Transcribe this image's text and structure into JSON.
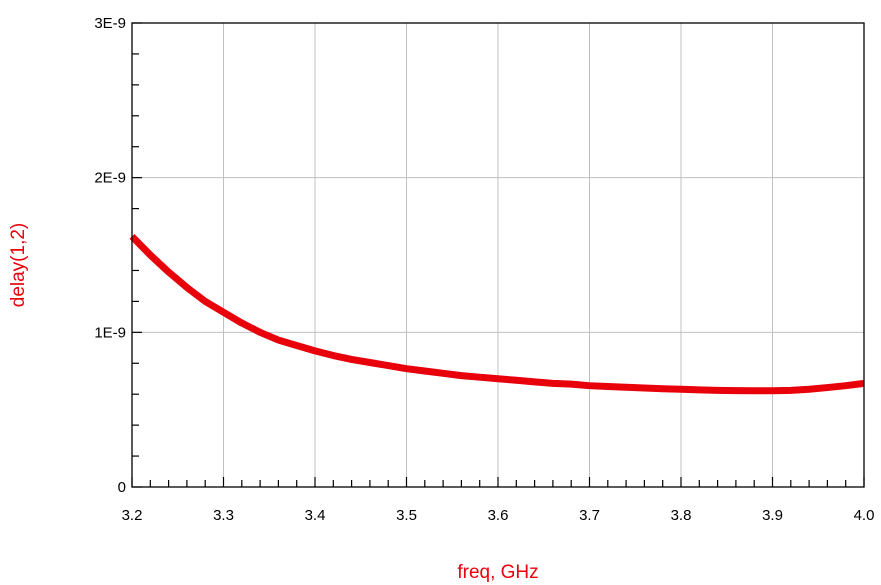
{
  "chart_data": {
    "type": "line",
    "title": "",
    "xlabel": "freq, GHz",
    "ylabel": "delay(1,2)",
    "xlim": [
      3.2,
      4.0
    ],
    "ylim": [
      0,
      3e-09
    ],
    "x_ticks": [
      3.2,
      3.3,
      3.4,
      3.5,
      3.6,
      3.7,
      3.8,
      3.9,
      4.0
    ],
    "x_tick_labels": [
      "3.2",
      "3.3",
      "3.4",
      "3.5",
      "3.6",
      "3.7",
      "3.8",
      "3.9",
      "4.0"
    ],
    "y_ticks": [
      0,
      1e-09,
      2e-09,
      3e-09
    ],
    "y_tick_labels": [
      "0",
      "1E-9",
      "2E-9",
      "3E-9"
    ],
    "grid": true,
    "legend": "none",
    "colors": {
      "series": "#e8000b",
      "axis_label": "#e8000b",
      "grid": "#c0c0c0",
      "axis": "#000000"
    },
    "series": [
      {
        "x": [
          3.2,
          3.22,
          3.24,
          3.26,
          3.28,
          3.3,
          3.32,
          3.34,
          3.36,
          3.38,
          3.4,
          3.42,
          3.44,
          3.46,
          3.48,
          3.5,
          3.52,
          3.54,
          3.56,
          3.58,
          3.6,
          3.62,
          3.64,
          3.66,
          3.68,
          3.7,
          3.72,
          3.74,
          3.76,
          3.78,
          3.8,
          3.82,
          3.84,
          3.86,
          3.88,
          3.9,
          3.92,
          3.94,
          3.96,
          3.98,
          4.0
        ],
        "y": [
          1.62e-09,
          1.5e-09,
          1.39e-09,
          1.29e-09,
          1.2e-09,
          1.13e-09,
          1.06e-09,
          1e-09,
          9.5e-10,
          9.15e-10,
          8.8e-10,
          8.5e-10,
          8.25e-10,
          8.05e-10,
          7.85e-10,
          7.65e-10,
          7.5e-10,
          7.35e-10,
          7.2e-10,
          7.1e-10,
          7e-10,
          6.9e-10,
          6.8e-10,
          6.7e-10,
          6.65e-10,
          6.55e-10,
          6.5e-10,
          6.45e-10,
          6.4e-10,
          6.35e-10,
          6.32e-10,
          6.28e-10,
          6.25e-10,
          6.23e-10,
          6.22e-10,
          6.22e-10,
          6.25e-10,
          6.32e-10,
          6.43e-10,
          6.55e-10,
          6.7e-10
        ]
      }
    ]
  }
}
